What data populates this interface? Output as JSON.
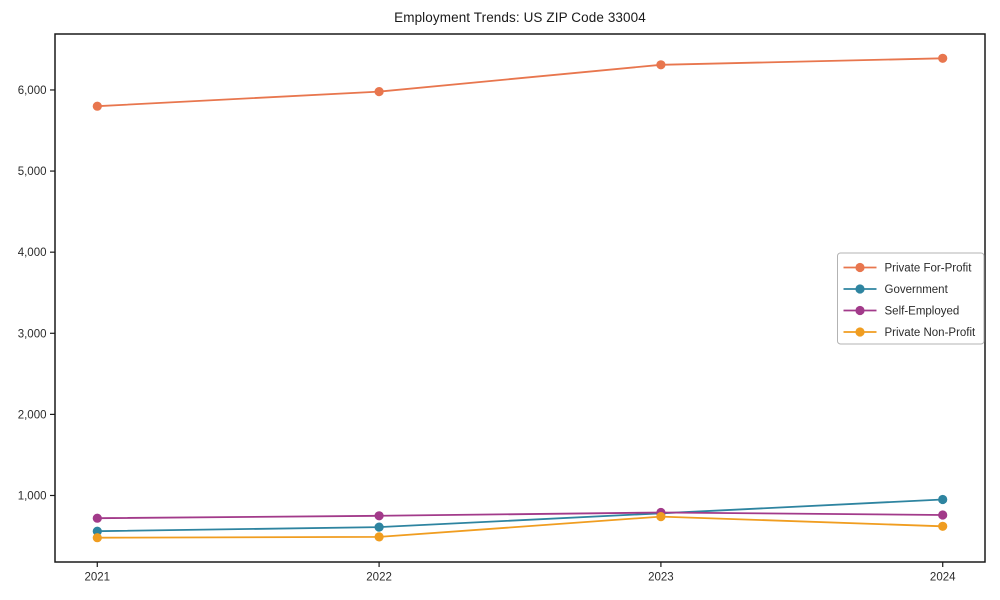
{
  "chart_data": {
    "type": "line",
    "title": "Employment Trends: US ZIP Code 33004",
    "x": [
      2021,
      2022,
      2023,
      2024
    ],
    "x_tick_labels": [
      "2021",
      "2022",
      "2023",
      "2024"
    ],
    "series": [
      {
        "name": "Private For-Profit",
        "color": "#e8764e",
        "values": [
          5800,
          5980,
          6310,
          6390
        ]
      },
      {
        "name": "Government",
        "color": "#2e84a0",
        "values": [
          560,
          610,
          780,
          950
        ]
      },
      {
        "name": "Self-Employed",
        "color": "#a23a8a",
        "values": [
          720,
          750,
          790,
          760
        ]
      },
      {
        "name": "Private Non-Profit",
        "color": "#f09d20",
        "values": [
          480,
          490,
          740,
          620
        ]
      }
    ],
    "xlim": [
      2020.85,
      2024.15
    ],
    "ylim": [
      180,
      6690
    ],
    "y_ticks": [
      1000,
      2000,
      3000,
      4000,
      5000,
      6000
    ],
    "y_tick_labels": [
      "1,000",
      "2,000",
      "3,000",
      "4,000",
      "5,000",
      "6,000"
    ],
    "grid": false,
    "legend_position": "center right",
    "axis_color": "#1a1a1a",
    "legend_border_color": "#b3b3b3"
  }
}
